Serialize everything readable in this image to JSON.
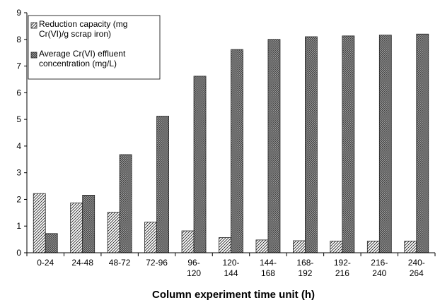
{
  "chart_data": {
    "type": "bar",
    "x_label": "Column experiment time unit (h)",
    "categories": [
      "0-24",
      "24-48",
      "48-72",
      "72-96",
      "96-120",
      "120-144",
      "144-168",
      "168-192",
      "192-216",
      "216-240",
      "240-264"
    ],
    "series": [
      {
        "name": "Reduction capacity (mg Cr(VI)/g scrap iron)",
        "color": "#222222",
        "pattern": "diagonal",
        "values": [
          2.22,
          1.87,
          1.52,
          1.15,
          0.82,
          0.57,
          0.48,
          0.45,
          0.44,
          0.44,
          0.44
        ]
      },
      {
        "name": "Average Cr(VI) effluent concentration (mg/L)",
        "color": "#222222",
        "pattern": "crosshatch",
        "values": [
          0.72,
          2.16,
          3.68,
          5.12,
          6.62,
          7.62,
          8.0,
          8.1,
          8.13,
          8.16,
          8.2
        ]
      }
    ],
    "ylim": [
      0,
      9
    ],
    "yticks": [
      0,
      1,
      2,
      3,
      4,
      5,
      6,
      7,
      8,
      9
    ],
    "grid": false,
    "legend": "upper left"
  }
}
